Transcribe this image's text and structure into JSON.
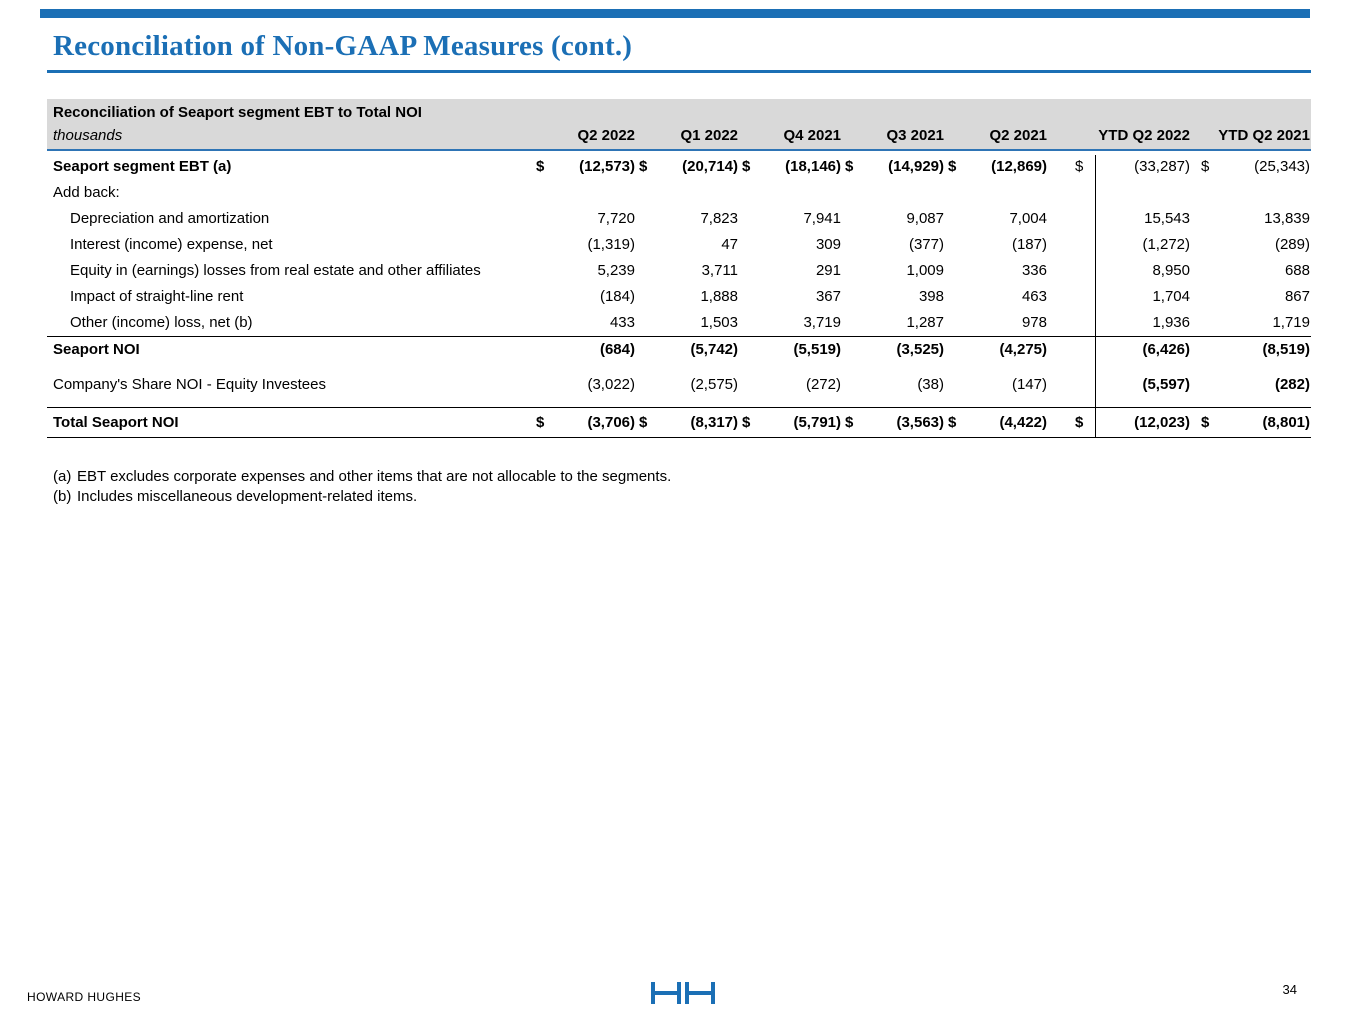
{
  "page": {
    "title": "Reconciliation of Non-GAAP Measures (cont.)",
    "footer": {
      "company": "HOWARD HUGHES",
      "page_number": "34",
      "logo": "HH"
    }
  },
  "colors": {
    "accent_blue": "#1B6FB5",
    "rule_blue": "#2E74B5",
    "header_gray": "#D9D9D9"
  },
  "table": {
    "title": "Reconciliation of Seaport segment EBT to Total NOI",
    "unit_label": "thousands",
    "columns": [
      "Q2 2022",
      "Q1 2022",
      "Q4 2021",
      "Q3 2021",
      "Q2 2021",
      "YTD Q2 2022",
      "YTD Q2 2021"
    ],
    "rows": [
      {
        "label": "Seaport segment EBT (a)",
        "indent": false,
        "bold_label": true,
        "dollar": true,
        "values": [
          "(12,573)",
          "(20,714)",
          "(18,146)",
          "(14,929)",
          "(12,869)",
          "(33,287)",
          "(25,343)"
        ],
        "bold_values": [
          true,
          true,
          true,
          true,
          true,
          false,
          false
        ]
      },
      {
        "label": "Add back:",
        "indent": false,
        "bold_label": false,
        "dollar": false,
        "values": [
          "",
          "",
          "",
          "",
          "",
          "",
          ""
        ],
        "bold_values": []
      },
      {
        "label": "Depreciation and amortization",
        "indent": true,
        "bold_label": false,
        "dollar": false,
        "values": [
          "7,720",
          "7,823",
          "7,941",
          "9,087",
          "7,004",
          "15,543",
          "13,839"
        ],
        "bold_values": []
      },
      {
        "label": "Interest (income) expense, net",
        "indent": true,
        "bold_label": false,
        "dollar": false,
        "values": [
          "(1,319)",
          "47",
          "309",
          "(377)",
          "(187)",
          "(1,272)",
          "(289)"
        ],
        "bold_values": []
      },
      {
        "label": "Equity in (earnings) losses from real estate and other affiliates",
        "indent": true,
        "bold_label": false,
        "dollar": false,
        "values": [
          "5,239",
          "3,711",
          "291",
          "1,009",
          "336",
          "8,950",
          "688"
        ],
        "bold_values": []
      },
      {
        "label": "Impact of straight-line rent",
        "indent": true,
        "bold_label": false,
        "dollar": false,
        "values": [
          "(184)",
          "1,888",
          "367",
          "398",
          "463",
          "1,704",
          "867"
        ],
        "bold_values": []
      },
      {
        "label": "Other (income) loss, net (b)",
        "indent": true,
        "bold_label": false,
        "dollar": false,
        "values": [
          "433",
          "1,503",
          "3,719",
          "1,287",
          "978",
          "1,936",
          "1,719"
        ],
        "bold_values": []
      },
      {
        "label": "Seaport NOI",
        "indent": false,
        "bold_label": true,
        "dollar": false,
        "rule_above": true,
        "values": [
          "(684)",
          "(5,742)",
          "(5,519)",
          "(3,525)",
          "(4,275)",
          "(6,426)",
          "(8,519)"
        ],
        "bold_values": [
          true,
          true,
          true,
          true,
          true,
          true,
          true
        ]
      },
      {
        "label": "Company's Share NOI - Equity Investees",
        "indent": false,
        "bold_label": false,
        "dollar": false,
        "gap_above": true,
        "values": [
          "(3,022)",
          "(2,575)",
          "(272)",
          "(38)",
          "(147)",
          "(5,597)",
          "(282)"
        ],
        "bold_values": [
          false,
          false,
          false,
          false,
          false,
          true,
          true
        ]
      },
      {
        "label": "Total Seaport NOI",
        "indent": false,
        "bold_label": true,
        "dollar": true,
        "rule_above": true,
        "rule_below": true,
        "values": [
          "(3,706)",
          "(8,317)",
          "(5,791)",
          "(3,563)",
          "(4,422)",
          "(12,023)",
          "(8,801)"
        ],
        "bold_values": [
          true,
          true,
          true,
          true,
          true,
          true,
          true
        ]
      }
    ]
  },
  "footnotes": [
    {
      "marker": "(a)",
      "text": "EBT excludes corporate expenses and other items that are not allocable to the segments."
    },
    {
      "marker": "(b)",
      "text": "Includes miscellaneous development-related items."
    }
  ]
}
